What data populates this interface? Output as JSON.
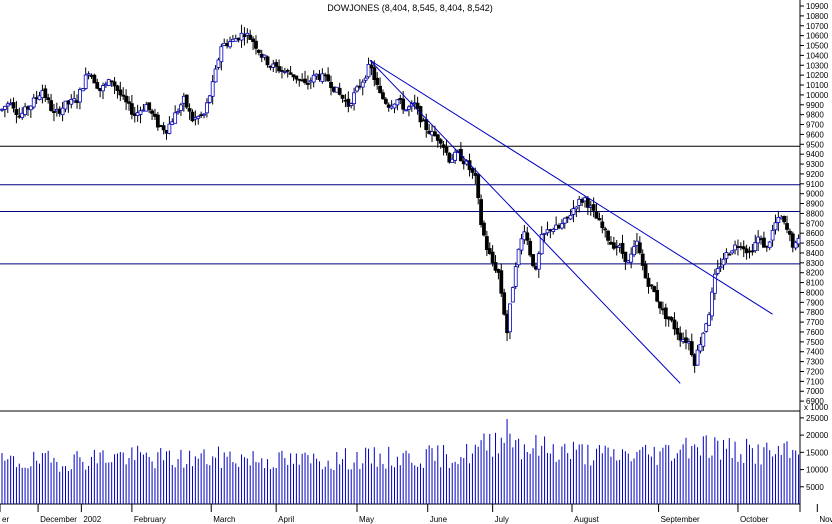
{
  "chart_data": {
    "type": "candlestick-with-volume",
    "title": "DOWJONES (8,404, 8,545, 8,404, 8,542)",
    "price_axis": {
      "min": 6800,
      "max": 10900,
      "ticks": [
        6900,
        7000,
        7100,
        7200,
        7300,
        7400,
        7500,
        7600,
        7700,
        7800,
        7900,
        8000,
        8100,
        8200,
        8300,
        8400,
        8500,
        8600,
        8700,
        8800,
        8900,
        9000,
        9100,
        9200,
        9300,
        9400,
        9500,
        9600,
        9700,
        9800,
        9900,
        10000,
        10100,
        10200,
        10300,
        10400,
        10500,
        10600,
        10700,
        10800,
        10900
      ]
    },
    "volume_axis": {
      "unit_label": "x 1000",
      "min": 0,
      "max": 27000,
      "ticks": [
        5000,
        10000,
        15000,
        20000,
        25000
      ]
    },
    "x_axis_labels": [
      "er",
      "December",
      "2002",
      "February",
      "March",
      "April",
      "May",
      "June",
      "July",
      "August",
      "September",
      "October",
      "November"
    ],
    "x_axis_label_days": [
      -8,
      25,
      55,
      90,
      145,
      190,
      246,
      295,
      340,
      395,
      455,
      510,
      565
    ],
    "horizontal_lines": [
      {
        "value": 9480,
        "color": "#000000"
      },
      {
        "value": 9090,
        "color": "#000080"
      },
      {
        "value": 8820,
        "color": "#000080"
      },
      {
        "value": 8290,
        "color": "#000080"
      }
    ],
    "trend_lines": [
      {
        "from": [
          255,
          10350
        ],
        "to": [
          534,
          7780
        ],
        "color": "#0000c0"
      },
      {
        "from": [
          255,
          10350
        ],
        "to": [
          470,
          7080
        ],
        "color": "#0000c0"
      }
    ],
    "price_anchors": [
      [
        0,
        9850
      ],
      [
        6,
        9950
      ],
      [
        12,
        9780
      ],
      [
        20,
        9900
      ],
      [
        28,
        10050
      ],
      [
        36,
        9800
      ],
      [
        44,
        9900
      ],
      [
        52,
        9950
      ],
      [
        60,
        10250
      ],
      [
        68,
        10050
      ],
      [
        76,
        10150
      ],
      [
        84,
        9950
      ],
      [
        92,
        9800
      ],
      [
        100,
        9900
      ],
      [
        108,
        9700
      ],
      [
        114,
        9650
      ],
      [
        120,
        9800
      ],
      [
        126,
        9950
      ],
      [
        132,
        9750
      ],
      [
        140,
        9800
      ],
      [
        146,
        10100
      ],
      [
        152,
        10500
      ],
      [
        160,
        10550
      ],
      [
        168,
        10630
      ],
      [
        174,
        10550
      ],
      [
        180,
        10400
      ],
      [
        186,
        10300
      ],
      [
        194,
        10250
      ],
      [
        202,
        10200
      ],
      [
        210,
        10100
      ],
      [
        218,
        10200
      ],
      [
        226,
        10150
      ],
      [
        234,
        10000
      ],
      [
        240,
        9900
      ],
      [
        246,
        10050
      ],
      [
        250,
        10150
      ],
      [
        255,
        10300
      ],
      [
        262,
        10000
      ],
      [
        268,
        9900
      ],
      [
        274,
        9950
      ],
      [
        280,
        9850
      ],
      [
        286,
        9900
      ],
      [
        292,
        9700
      ],
      [
        298,
        9600
      ],
      [
        304,
        9550
      ],
      [
        310,
        9350
      ],
      [
        316,
        9400
      ],
      [
        322,
        9300
      ],
      [
        328,
        9150
      ],
      [
        332,
        8700
      ],
      [
        336,
        8450
      ],
      [
        340,
        8300
      ],
      [
        344,
        8200
      ],
      [
        348,
        7800
      ],
      [
        350,
        7600
      ],
      [
        352,
        7850
      ],
      [
        356,
        8300
      ],
      [
        362,
        8650
      ],
      [
        366,
        8400
      ],
      [
        370,
        8200
      ],
      [
        374,
        8550
      ],
      [
        380,
        8650
      ],
      [
        386,
        8650
      ],
      [
        392,
        8750
      ],
      [
        398,
        8900
      ],
      [
        404,
        8950
      ],
      [
        410,
        8800
      ],
      [
        416,
        8650
      ],
      [
        422,
        8500
      ],
      [
        428,
        8450
      ],
      [
        434,
        8300
      ],
      [
        440,
        8500
      ],
      [
        446,
        8150
      ],
      [
        452,
        8000
      ],
      [
        458,
        7800
      ],
      [
        464,
        7700
      ],
      [
        470,
        7550
      ],
      [
        476,
        7500
      ],
      [
        480,
        7300
      ],
      [
        484,
        7500
      ],
      [
        490,
        7800
      ],
      [
        494,
        8150
      ],
      [
        500,
        8350
      ],
      [
        506,
        8450
      ],
      [
        512,
        8500
      ],
      [
        518,
        8400
      ],
      [
        524,
        8550
      ],
      [
        530,
        8450
      ],
      [
        536,
        8700
      ],
      [
        540,
        8750
      ],
      [
        545,
        8600
      ],
      [
        549,
        8450
      ],
      [
        553,
        8542
      ]
    ],
    "volume_anchors": [
      [
        0,
        12000
      ],
      [
        40,
        12500
      ],
      [
        80,
        14000
      ],
      [
        120,
        13000
      ],
      [
        160,
        13500
      ],
      [
        200,
        12500
      ],
      [
        240,
        13000
      ],
      [
        280,
        13500
      ],
      [
        320,
        14000
      ],
      [
        340,
        18000
      ],
      [
        350,
        22000
      ],
      [
        360,
        17000
      ],
      [
        380,
        16000
      ],
      [
        400,
        15000
      ],
      [
        420,
        14000
      ],
      [
        440,
        14500
      ],
      [
        460,
        15000
      ],
      [
        480,
        18000
      ],
      [
        500,
        16000
      ],
      [
        520,
        15000
      ],
      [
        553,
        14500
      ]
    ],
    "day_range": [
      0,
      553
    ]
  }
}
